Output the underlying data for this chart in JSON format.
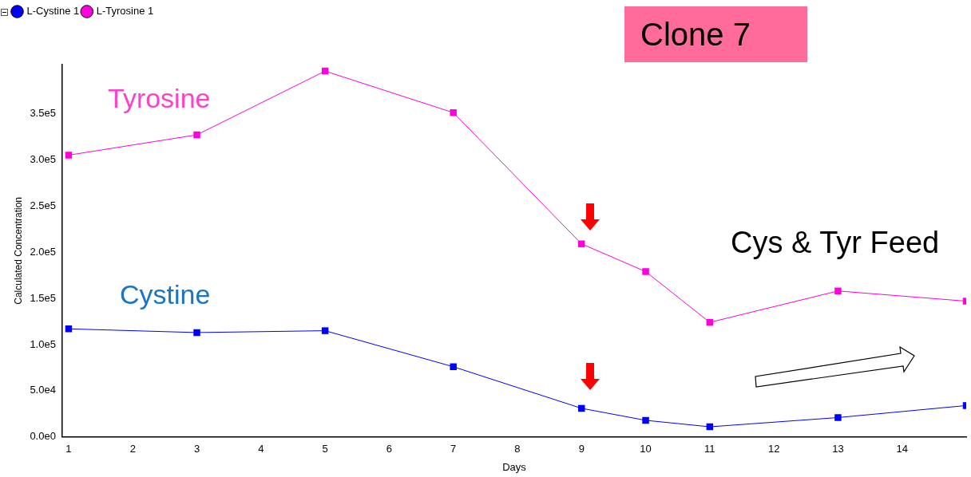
{
  "chart_data": {
    "type": "line",
    "xlabel": "Days",
    "ylabel": "Calculated Concentration",
    "xlim": [
      0.9,
      15
    ],
    "xticks": [
      1,
      2,
      3,
      4,
      5,
      6,
      7,
      8,
      9,
      10,
      11,
      12,
      13,
      14
    ],
    "ylim": [
      0,
      403000
    ],
    "yticks": [
      {
        "value": 0,
        "label": "0.0e0"
      },
      {
        "value": 50000,
        "label": "5.0e4"
      },
      {
        "value": 100000,
        "label": "1.0e5"
      },
      {
        "value": 150000,
        "label": "1.5e5"
      },
      {
        "value": 200000,
        "label": "2.0e5"
      },
      {
        "value": 250000,
        "label": "2.5e5"
      },
      {
        "value": 300000,
        "label": "3.0e5"
      },
      {
        "value": 350000,
        "label": "3.5e5"
      }
    ],
    "x": [
      1,
      3,
      5,
      7,
      9,
      10,
      11,
      13,
      15
    ],
    "series": [
      {
        "name": "L-Cystine 1",
        "color": "#0000ff",
        "values": [
          117000,
          113000,
          115000,
          76000,
          31000,
          18000,
          11000,
          21000,
          34000
        ]
      },
      {
        "name": "L-Tyrosine 1",
        "color": "#ff00dd",
        "values": [
          305000,
          327000,
          396000,
          351000,
          209000,
          179000,
          124000,
          158000,
          147000
        ]
      }
    ],
    "marker": "square",
    "line_style": "solid",
    "grid": false,
    "legend": "top left",
    "annotations": [
      "Clone 7",
      "Tyrosine",
      "Cystine",
      "Cys & Tyr Feed"
    ]
  }
}
